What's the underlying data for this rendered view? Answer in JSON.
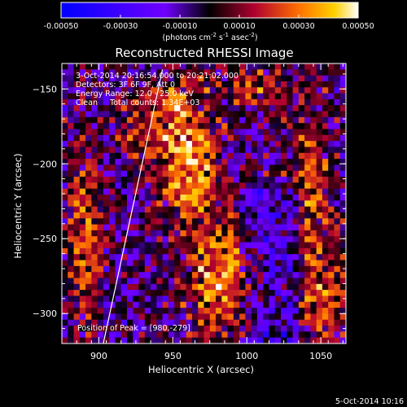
{
  "chart_data": {
    "type": "heatmap",
    "title": "Reconstructed RHESSI Image",
    "xlabel": "Heliocentric X (arcsec)",
    "ylabel": "Heliocentric Y (arcsec)",
    "xlim": [
      875,
      1067
    ],
    "ylim": [
      -320,
      -133
    ],
    "x_ticks": [
      900,
      950,
      1000,
      1050
    ],
    "y_ticks": [
      -150,
      -200,
      -250,
      -300
    ],
    "colorbar": {
      "range": [
        -0.0005,
        0.0005
      ],
      "ticks": [
        "-0.00050",
        "-0.00030",
        "-0.00010",
        "0.00010",
        "0.00030",
        "0.00050"
      ],
      "tick_values": [
        -0.0005,
        -0.0003,
        -0.0001,
        0.0001,
        0.0003,
        0.0005
      ],
      "label_main": "(photons cm",
      "label_sup1": "-2",
      "label_mid": " s",
      "label_sup2": "-1",
      "label_end": " asec",
      "label_sup3": "-2",
      "label_close": ")"
    },
    "annotations": [
      "3-Oct-2014 20:16:54.000 to 20:21:02.000",
      "Detectors: 3F 6F 9F, Att 0",
      "Energy Range: 12.0 - 25.0 keV",
      "Clean     Total counts: 1.34E+03"
    ],
    "peak_label": "Position of Peak = [980,-279]",
    "peak": [
      980,
      -279
    ],
    "limb_line": [
      [
        903,
        -320
      ],
      [
        943,
        -137
      ]
    ],
    "grid_size": [
      48,
      47
    ],
    "hot_features": [
      {
        "x": 960,
        "y": -200,
        "sx": 14,
        "sy": 25,
        "a": 1.0
      },
      {
        "x": 983,
        "y": -275,
        "sx": 16,
        "sy": 30,
        "a": 0.9
      },
      {
        "x": 950,
        "y": -160,
        "sx": 10,
        "sy": 14,
        "a": 0.6
      },
      {
        "x": 890,
        "y": -250,
        "sx": 8,
        "sy": 40,
        "a": 0.75
      },
      {
        "x": 1045,
        "y": -220,
        "sx": 10,
        "sy": 45,
        "a": 0.6
      },
      {
        "x": 1055,
        "y": -290,
        "sx": 12,
        "sy": 20,
        "a": 0.55
      },
      {
        "x": 1000,
        "y": -150,
        "sx": 20,
        "sy": 12,
        "a": 0.45
      },
      {
        "x": 925,
        "y": -180,
        "sx": 9,
        "sy": 20,
        "a": 0.5
      }
    ]
  },
  "footer": {
    "date": "5-Oct-2014 10:16"
  }
}
